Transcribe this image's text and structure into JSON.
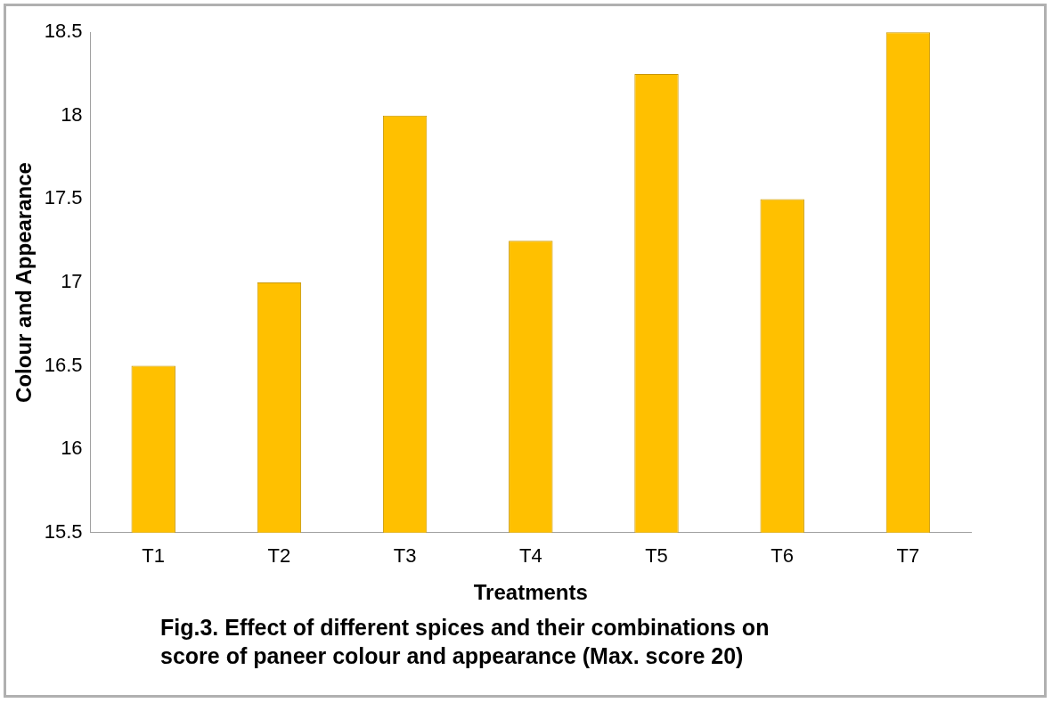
{
  "chart_data": {
    "type": "bar",
    "title": "Fig.3.  Effect of different spices and their combinations on score of paneer colour  and appearance (Max. score 20)",
    "xlabel": "Treatments",
    "ylabel": "Colour and Appearance",
    "categories": [
      "T1",
      "T2",
      "T3",
      "T4",
      "T5",
      "T6",
      "T7"
    ],
    "values": [
      16.5,
      17,
      18,
      17.25,
      18.25,
      17.5,
      18.5
    ],
    "color": "#ffc000",
    "ylim": [
      15.5,
      18.5
    ],
    "yticks": [
      15.5,
      16,
      16.5,
      17,
      17.5,
      18,
      18.5
    ],
    "grid": false,
    "legend": false
  }
}
